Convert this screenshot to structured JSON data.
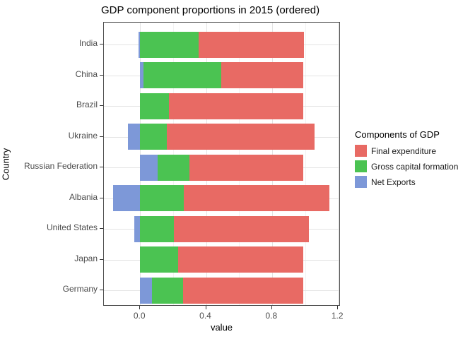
{
  "title": "GDP component proportions in 2015 (ordered)",
  "chart_data": {
    "type": "bar",
    "orientation": "horizontal",
    "stacked": true,
    "title": "GDP component proportions in 2015 (ordered)",
    "xlabel": "value",
    "ylabel": "Country",
    "xlim": [
      -0.22,
      1.22
    ],
    "x_major_ticks": [
      0.0,
      0.4,
      0.8,
      1.2
    ],
    "x_minor_ticks": [
      0.2,
      0.6,
      1.0
    ],
    "grid": true,
    "legend_title": "Components of GDP",
    "legend_position": "right",
    "categories": [
      "India",
      "China",
      "Brazil",
      "Ukraine",
      "Russian Federation",
      "Albania",
      "United States",
      "Japan",
      "Germany"
    ],
    "series": [
      {
        "name": "Final expenditure",
        "color": "#e86a64",
        "values": [
          0.64,
          0.5,
          0.815,
          0.9,
          0.69,
          0.885,
          0.82,
          0.76,
          0.73
        ]
      },
      {
        "name": "Gross capital formation",
        "color": "#4bc352",
        "values": [
          0.355,
          0.47,
          0.175,
          0.16,
          0.195,
          0.265,
          0.205,
          0.23,
          0.19
        ]
      },
      {
        "name": "Net Exports",
        "color": "#7d98d8",
        "values": [
          -0.01,
          0.02,
          0.0,
          -0.075,
          0.105,
          -0.165,
          -0.035,
          0.0,
          0.07
        ]
      }
    ],
    "note_colors": {
      "panel_border": "#4a4a4a",
      "grid_major": "#e4e4e4",
      "grid_minor": "#f2f2f2",
      "tick_text": "#4d4d4d"
    }
  }
}
